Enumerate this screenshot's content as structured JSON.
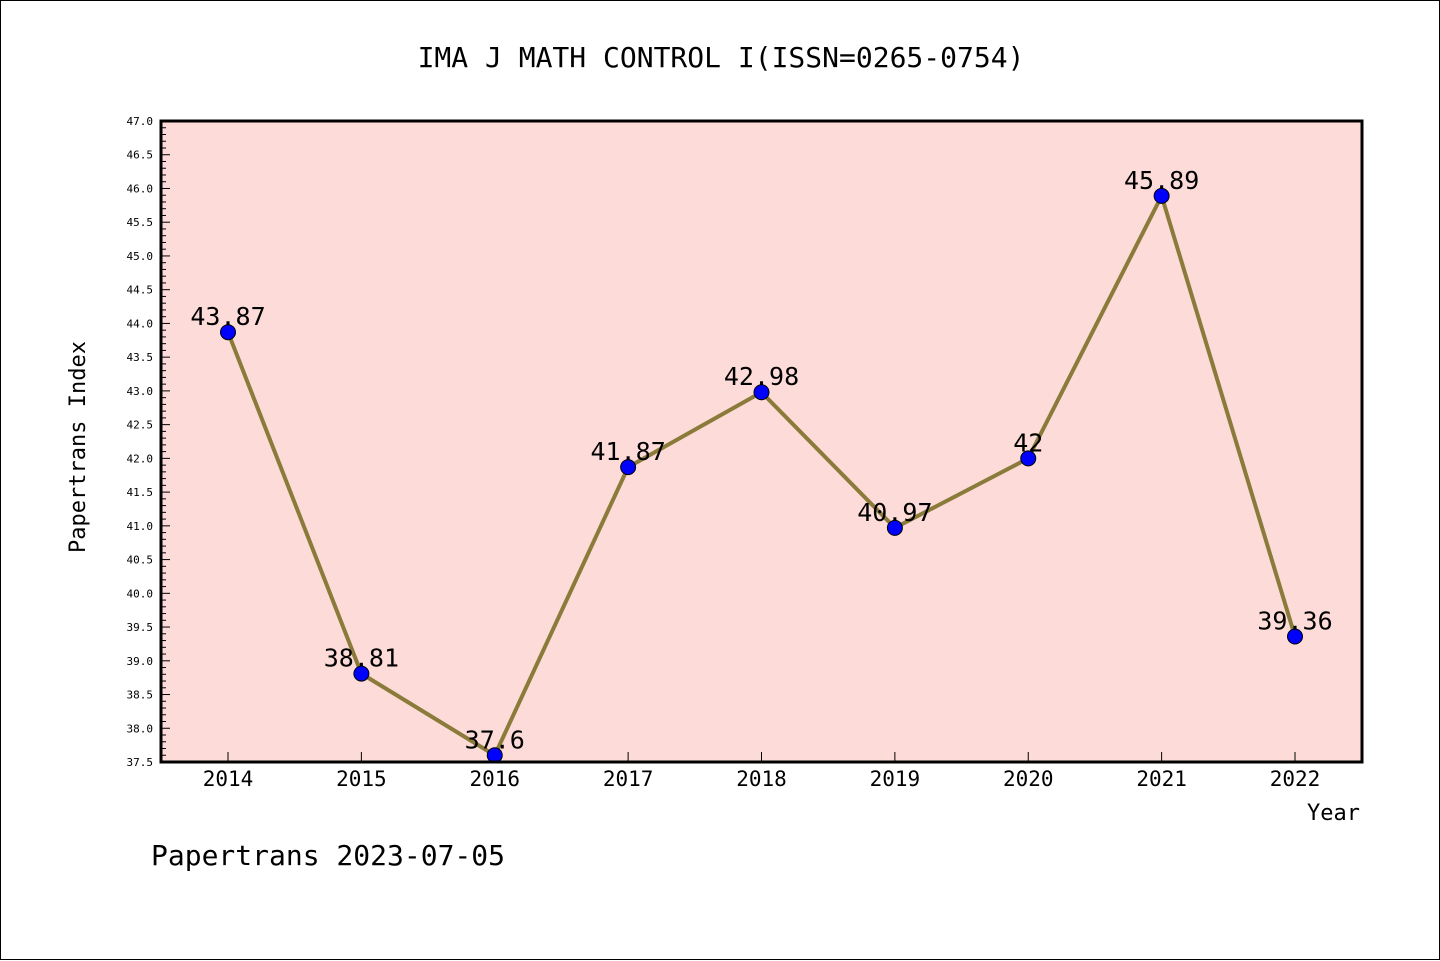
{
  "chart_data": {
    "type": "line",
    "title": "IMA J MATH CONTROL I(ISSN=0265-0754)",
    "xlabel": "Year",
    "ylabel": "Papertrans Index",
    "categories": [
      "2014",
      "2015",
      "2016",
      "2017",
      "2018",
      "2019",
      "2020",
      "2021",
      "2022"
    ],
    "values": [
      43.87,
      38.81,
      37.6,
      41.87,
      42.98,
      40.97,
      42,
      45.89,
      39.36
    ],
    "data_labels": [
      "43.87",
      "38.81",
      "37.6",
      "41.87",
      "42.98",
      "40.97",
      "42",
      "45.89",
      "39.36"
    ],
    "ylim": [
      37.5,
      47.0
    ],
    "yticks": [
      "37.5",
      "38.0",
      "38.5",
      "39.0",
      "39.5",
      "40.0",
      "40.5",
      "41.0",
      "41.5",
      "42.0",
      "42.5",
      "43.0",
      "43.5",
      "44.0",
      "44.5",
      "45.0",
      "45.5",
      "46.0",
      "46.5",
      "47.0"
    ],
    "grid": false,
    "colors": {
      "plot_background": "#FDDBD8",
      "line": "#8B7B3A",
      "marker": "#0000FF"
    }
  },
  "footer": "Papertrans 2023-07-05"
}
